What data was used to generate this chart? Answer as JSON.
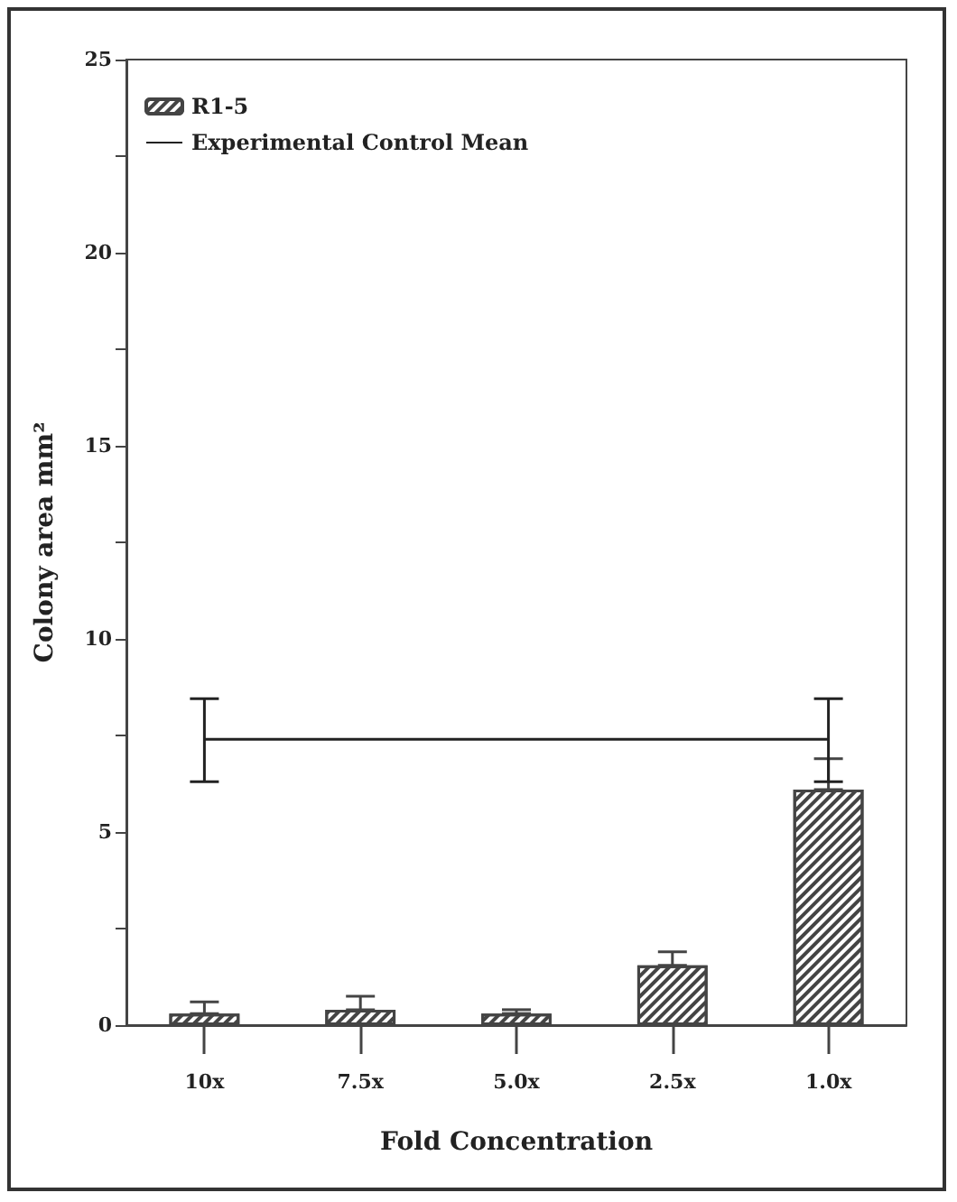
{
  "chart_data": {
    "type": "bar",
    "xlabel": "Fold Concentration",
    "ylabel": "Colony area mm²",
    "categories": [
      "10x",
      "7.5x",
      "5.0x",
      "2.5x",
      "1.0x"
    ],
    "series": [
      {
        "name": "R1-5",
        "color": "#444444",
        "values": [
          0.3,
          0.4,
          0.3,
          1.55,
          6.1
        ],
        "errors": [
          [
            0.3,
            0.6
          ],
          [
            0.4,
            0.75
          ],
          [
            0.3,
            0.4
          ],
          [
            1.55,
            1.9
          ],
          [
            6.1,
            6.9
          ]
        ]
      },
      {
        "name": "Experimental Control Mean",
        "type": "line",
        "color": "#222222",
        "marker": "none",
        "line_style": "solid",
        "values": [
          7.4,
          null,
          null,
          null,
          7.4
        ],
        "errors": [
          [
            6.3,
            8.45
          ],
          null,
          null,
          null,
          [
            6.3,
            8.45
          ]
        ]
      }
    ],
    "ylim": [
      0,
      25
    ],
    "yticks": [
      0,
      {
        "value": 2.5,
        "label": null
      },
      5,
      {
        "value": 7.5,
        "label": null
      },
      10,
      {
        "value": 12.5,
        "label": null
      },
      15,
      {
        "value": 17.5,
        "label": null
      },
      20,
      {
        "value": 22.5,
        "label": null
      },
      25
    ],
    "grid": false,
    "legend": "top left"
  }
}
